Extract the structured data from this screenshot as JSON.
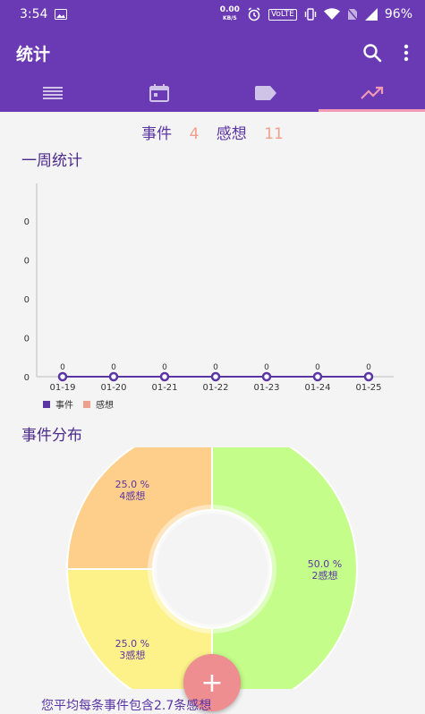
{
  "status": {
    "time": "3:54",
    "net_speed": "0.00",
    "net_unit": "KB/S",
    "lte_badge": "VoLTE",
    "battery": "96%"
  },
  "appbar": {
    "title": "统计"
  },
  "tabs": [
    {
      "icon": "list-icon"
    },
    {
      "icon": "calendar-icon"
    },
    {
      "icon": "tag-icon"
    },
    {
      "icon": "trending-up-icon"
    }
  ],
  "summary": {
    "events_label": "事件",
    "events_count": "4",
    "thoughts_label": "感想",
    "thoughts_count": "11"
  },
  "weekly": {
    "title": "一周统计"
  },
  "distribution": {
    "title": "事件分布"
  },
  "colors": {
    "primary": "#6a3ab4",
    "events": "#5a35a4",
    "thoughts": "#f0a08a",
    "slice_green": "#c4fd8a",
    "slice_yellow": "#fdf28a",
    "slice_orange": "#fdcf8a"
  },
  "footer": {
    "text": "您平均每条事件包含2.7条感想"
  },
  "fab": {
    "label": "+"
  },
  "chart_data": [
    {
      "type": "line",
      "title": "一周统计",
      "categories": [
        "01-19",
        "01-20",
        "01-21",
        "01-22",
        "01-23",
        "01-24",
        "01-25"
      ],
      "yticks": [
        "0",
        "0",
        "0",
        "0",
        "0"
      ],
      "series": [
        {
          "name": "事件",
          "values": [
            0,
            0,
            0,
            0,
            0,
            0,
            0
          ],
          "point_labels": [
            "0",
            "0",
            "0",
            "0",
            "0",
            "0",
            "0"
          ]
        },
        {
          "name": "感想",
          "values": [
            0,
            0,
            0,
            0,
            0,
            0,
            0
          ]
        }
      ],
      "legend": "bottom-left",
      "grid": false
    },
    {
      "type": "pie",
      "title": "事件分布",
      "donut": true,
      "slices": [
        {
          "value": 50.0,
          "percent_label": "50.0 %",
          "sub_label": "2感想",
          "color": "#c4fd8a"
        },
        {
          "value": 25.0,
          "percent_label": "25.0 %",
          "sub_label": "3感想",
          "color": "#fdf28a"
        },
        {
          "value": 25.0,
          "percent_label": "25.0 %",
          "sub_label": "4感想",
          "color": "#fdcf8a"
        }
      ]
    }
  ]
}
